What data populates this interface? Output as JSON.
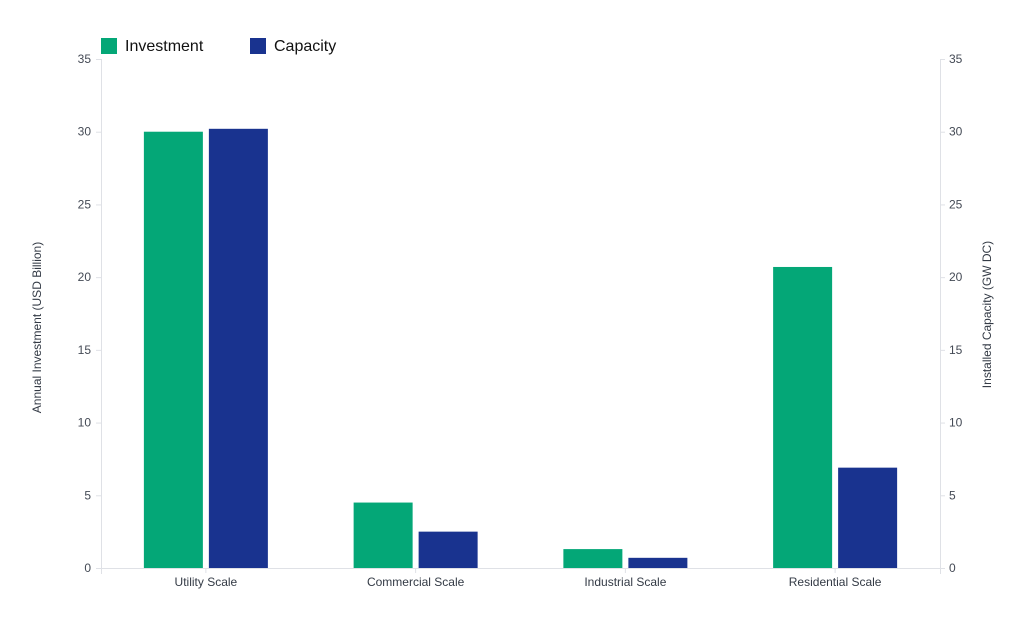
{
  "chart_data": {
    "type": "bar",
    "categories": [
      "Utility Scale",
      "Commercial Scale",
      "Industrial Scale",
      "Residential Scale"
    ],
    "series": [
      {
        "name": "Investment",
        "axis": "left",
        "color": "#04A777",
        "values": [
          30.0,
          4.5,
          1.3,
          20.7
        ]
      },
      {
        "name": "Capacity",
        "axis": "right",
        "color": "#19338F",
        "values": [
          30.2,
          2.5,
          0.7,
          6.9
        ]
      }
    ],
    "y_left": {
      "label": "Annual Investment (USD Billion)",
      "ylim": [
        0,
        35
      ],
      "ticks": [
        0,
        5,
        10,
        15,
        20,
        25,
        30,
        35
      ]
    },
    "y_right": {
      "label": "Installed Capacity (GW DC)",
      "ylim": [
        0,
        35
      ],
      "ticks": [
        0,
        5,
        10,
        15,
        20,
        25,
        30,
        35
      ]
    },
    "legend_position": "top-left",
    "grid": false
  }
}
